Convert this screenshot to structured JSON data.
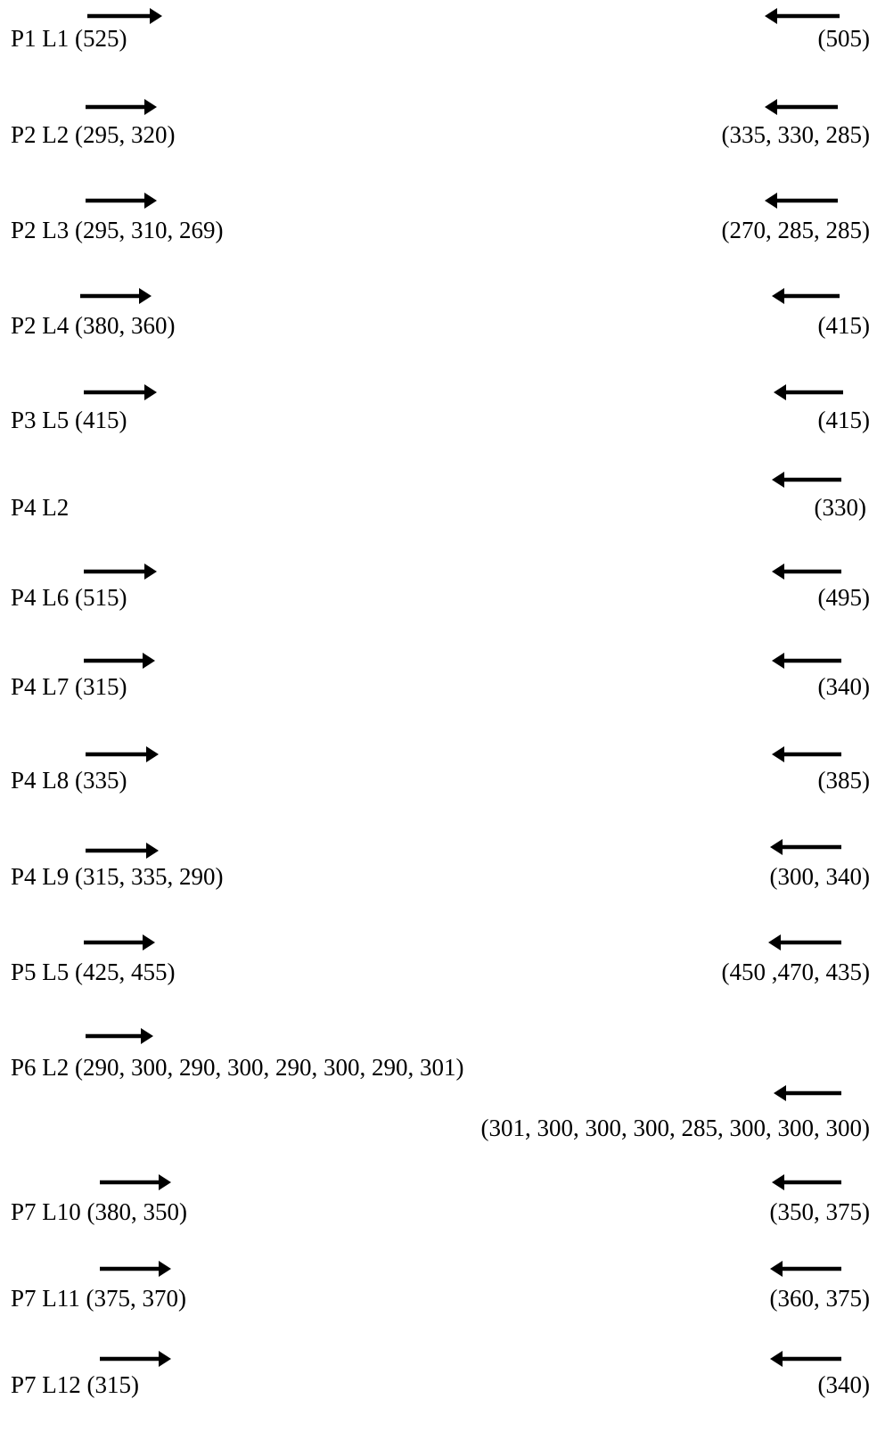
{
  "rows": [
    {
      "label": "P1 L1",
      "left_values": "(525)",
      "right_values": "(505)"
    },
    {
      "label": "P2 L2",
      "left_values": "(295, 320)",
      "right_values": "(335, 330, 285)"
    },
    {
      "label": "P2 L3",
      "left_values": "(295, 310, 269)",
      "right_values": "(270, 285, 285)"
    },
    {
      "label": "P2 L4",
      "left_values": "(380, 360)",
      "right_values": "(415)"
    },
    {
      "label": "P3 L5",
      "left_values": "(415)",
      "right_values": "(415)"
    },
    {
      "label": "P4 L2",
      "left_values": "",
      "right_values": "(330)"
    },
    {
      "label": "P4 L6",
      "left_values": "(515)",
      "right_values": "(495)"
    },
    {
      "label": "P4 L7",
      "left_values": "(315)",
      "right_values": "(340)"
    },
    {
      "label": "P4 L8",
      "left_values": "(335)",
      "right_values": "(385)"
    },
    {
      "label": "P4 L9",
      "left_values": "(315, 335, 290)",
      "right_values": "(300, 340)"
    },
    {
      "label": "P5 L5",
      "left_values": "(425, 455)",
      "right_values": "(450 ,470, 435)"
    },
    {
      "label": "P6 L2",
      "left_values": "(290, 300, 290, 300, 290, 300, 290, 301)",
      "right_values": "(301, 300, 300, 300, 285, 300, 300, 300)"
    },
    {
      "label": "P7 L10",
      "left_values": "(380, 350)",
      "right_values": "(350, 375)"
    },
    {
      "label": "P7 L11",
      "left_values": "(375, 370)",
      "right_values": "(360, 375)"
    },
    {
      "label": "P7 L12",
      "left_values": "(315)",
      "right_values": "(340)"
    }
  ]
}
